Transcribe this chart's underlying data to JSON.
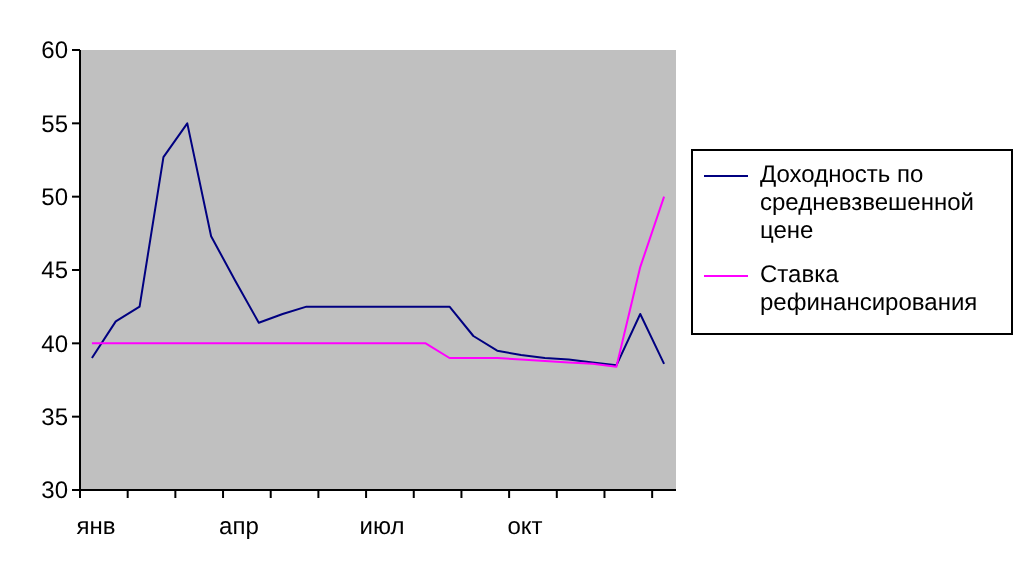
{
  "chart_data": {
    "type": "line",
    "categories": [
      "янв",
      null,
      null,
      null,
      null,
      null,
      "апр",
      null,
      null,
      null,
      null,
      null,
      "июл",
      null,
      null,
      null,
      null,
      null,
      "окт",
      null,
      null,
      null,
      null,
      null,
      null
    ],
    "series": [
      {
        "name": "Доходность по средневзвешенной цене",
        "color": "#000080",
        "values": [
          39,
          41.5,
          42.5,
          52.7,
          55,
          47.3,
          44.3,
          41.4,
          42,
          42.5,
          42.5,
          42.5,
          42.5,
          42.5,
          42.5,
          42.5,
          40.5,
          39.5,
          39.2,
          39,
          38.9,
          38.7,
          38.5,
          42,
          38.6
        ]
      },
      {
        "name": "Ставка рефинансирования",
        "color": "#ff00ff",
        "values": [
          40,
          40,
          40,
          40,
          40,
          40,
          40,
          40,
          40,
          40,
          40,
          40,
          40,
          40,
          40,
          39,
          39,
          39,
          38.9,
          38.8,
          38.7,
          38.6,
          38.4,
          45.2,
          50
        ]
      }
    ],
    "ylim": [
      30,
      60
    ],
    "yticks": [
      30,
      35,
      40,
      45,
      50,
      55,
      60
    ],
    "grid": false,
    "legend": "right",
    "marker": "none",
    "line_style": "solid"
  }
}
